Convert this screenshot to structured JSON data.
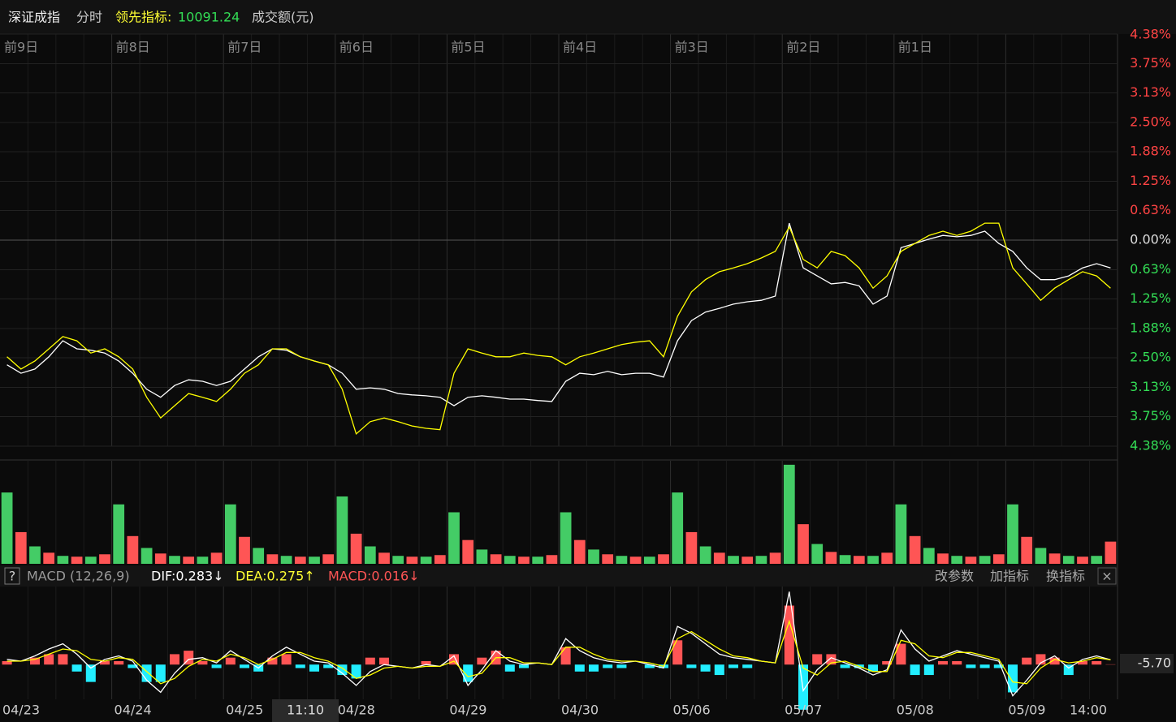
{
  "header": {
    "title": "深证成指",
    "mode": "分时",
    "lead_label": "领先指标:",
    "lead_value": 10091.24,
    "amount_label": "成交额(元)"
  },
  "price": {
    "ylim": [
      -4.38,
      4.38
    ],
    "yticks": [
      {
        "value": 4.38,
        "label": "4.38%"
      },
      {
        "value": 3.75,
        "label": "3.75%"
      },
      {
        "value": 3.13,
        "label": "3.13%"
      },
      {
        "value": 2.5,
        "label": "2.50%"
      },
      {
        "value": 1.88,
        "label": "1.88%"
      },
      {
        "value": 1.25,
        "label": "1.25%"
      },
      {
        "value": 0.63,
        "label": "0.63%"
      },
      {
        "value": 0,
        "label": "0.00%"
      },
      {
        "value": -0.63,
        "label": "0.63%"
      },
      {
        "value": -1.25,
        "label": "1.25%"
      },
      {
        "value": -1.88,
        "label": "1.88%"
      },
      {
        "value": -2.5,
        "label": "2.50%"
      },
      {
        "value": -3.13,
        "label": "3.13%"
      },
      {
        "value": -3.75,
        "label": "3.75%"
      },
      {
        "value": -4.38,
        "label": "4.38%"
      }
    ],
    "day_labels": [
      "前9日",
      "前8日",
      "前7日",
      "前6日",
      "前5日",
      "前4日",
      "前3日",
      "前2日",
      "前1日"
    ],
    "lines": [
      {
        "color": "#ffffff",
        "values": [
          -2.65,
          -2.83,
          -2.74,
          -2.48,
          -2.14,
          -2.31,
          -2.34,
          -2.4,
          -2.57,
          -2.83,
          -3.17,
          -3.34,
          -3.09,
          -2.97,
          -3.0,
          -3.09,
          -3.0,
          -2.74,
          -2.48,
          -2.31,
          -2.34,
          -2.48,
          -2.57,
          -2.65,
          -2.83,
          -3.17,
          -3.14,
          -3.17,
          -3.26,
          -3.29,
          -3.31,
          -3.34,
          -3.52,
          -3.34,
          -3.31,
          -3.34,
          -3.38,
          -3.38,
          -3.41,
          -3.43,
          -3.0,
          -2.83,
          -2.86,
          -2.79,
          -2.86,
          -2.83,
          -2.83,
          -2.91,
          -2.14,
          -1.71,
          -1.53,
          -1.45,
          -1.36,
          -1.31,
          -1.28,
          -1.19,
          0.36,
          -0.59,
          -0.76,
          -0.93,
          -0.9,
          -0.97,
          -1.36,
          -1.19,
          -0.16,
          -0.07,
          0.02,
          0.1,
          0.07,
          0.1,
          0.19,
          -0.07,
          -0.24,
          -0.59,
          -0.84,
          -0.84,
          -0.76,
          -0.59,
          -0.5,
          -0.59
        ]
      },
      {
        "color": "#ffff00",
        "values": [
          -2.48,
          -2.74,
          -2.57,
          -2.31,
          -2.05,
          -2.14,
          -2.4,
          -2.31,
          -2.48,
          -2.74,
          -3.34,
          -3.78,
          -3.52,
          -3.26,
          -3.34,
          -3.43,
          -3.17,
          -2.83,
          -2.65,
          -2.31,
          -2.31,
          -2.48,
          -2.57,
          -2.65,
          -3.17,
          -4.12,
          -3.86,
          -3.78,
          -3.86,
          -3.95,
          -4.0,
          -4.03,
          -2.83,
          -2.31,
          -2.4,
          -2.48,
          -2.48,
          -2.4,
          -2.45,
          -2.48,
          -2.65,
          -2.48,
          -2.4,
          -2.31,
          -2.22,
          -2.17,
          -2.14,
          -2.48,
          -1.62,
          -1.1,
          -0.84,
          -0.67,
          -0.59,
          -0.5,
          -0.38,
          -0.24,
          0.28,
          -0.41,
          -0.59,
          -0.24,
          -0.33,
          -0.59,
          -1.02,
          -0.76,
          -0.24,
          -0.07,
          0.1,
          0.19,
          0.1,
          0.19,
          0.36,
          0.36,
          -0.59,
          -0.93,
          -1.28,
          -1.02,
          -0.84,
          -0.67,
          -0.76,
          -1.02
        ]
      }
    ]
  },
  "volume": {
    "ylim": [
      0,
      130
    ],
    "values": [
      90,
      40,
      22,
      14,
      10,
      9,
      9,
      12,
      75,
      35,
      20,
      13,
      10,
      9,
      9,
      14,
      75,
      34,
      20,
      12,
      10,
      9,
      9,
      12,
      85,
      38,
      22,
      14,
      10,
      9,
      9,
      11,
      65,
      30,
      18,
      12,
      10,
      9,
      9,
      11,
      65,
      30,
      18,
      12,
      10,
      9,
      9,
      12,
      90,
      40,
      22,
      14,
      10,
      9,
      10,
      14,
      125,
      50,
      25,
      15,
      11,
      10,
      10,
      14,
      75,
      35,
      20,
      13,
      10,
      9,
      10,
      12,
      75,
      34,
      20,
      13,
      10,
      9,
      10,
      28
    ]
  },
  "macd": {
    "legend": {
      "help": "?",
      "name": "MACD (12,26,9)",
      "dif": "DIF:0.283↓",
      "dea": "DEA:0.275↑",
      "macd": "MACD:0.016↓"
    },
    "buttons": [
      "改参数",
      "加指标",
      "换指标"
    ],
    "close": "×",
    "readout": "-5.70",
    "ylim": [
      -2.0,
      4.5
    ],
    "dif": [
      0.3,
      0.2,
      0.5,
      0.9,
      1.2,
      0.6,
      -0.2,
      0.3,
      0.5,
      0.2,
      -0.9,
      -1.6,
      -0.5,
      0.3,
      0.4,
      0.1,
      0.8,
      0.3,
      -0.2,
      0.5,
      1.0,
      0.6,
      0.2,
      0.1,
      -0.5,
      -1.2,
      -0.4,
      0.0,
      -0.1,
      -0.2,
      0.0,
      -0.1,
      0.5,
      -1.2,
      -0.3,
      0.8,
      0.2,
      0.0,
      0.1,
      0.0,
      1.5,
      0.8,
      0.4,
      0.2,
      0.1,
      0.2,
      0.0,
      -0.2,
      2.2,
      1.8,
      1.2,
      0.6,
      0.4,
      0.3,
      0.2,
      0.1,
      4.2,
      -1.5,
      -0.3,
      0.4,
      0.1,
      -0.2,
      -0.6,
      -0.3,
      2.0,
      0.9,
      0.2,
      0.5,
      0.8,
      0.6,
      0.4,
      0.2,
      -1.8,
      -0.9,
      0.1,
      0.5,
      -0.2,
      0.3,
      0.5,
      0.283
    ],
    "dea": [
      0.2,
      0.2,
      0.3,
      0.6,
      0.9,
      0.8,
      0.3,
      0.2,
      0.4,
      0.3,
      -0.4,
      -1.1,
      -0.8,
      -0.1,
      0.3,
      0.2,
      0.6,
      0.4,
      0.0,
      0.3,
      0.7,
      0.7,
      0.4,
      0.2,
      -0.2,
      -0.8,
      -0.6,
      -0.2,
      -0.1,
      -0.2,
      -0.1,
      -0.1,
      0.2,
      -0.7,
      -0.5,
      0.4,
      0.4,
      0.1,
      0.1,
      0.0,
      1.0,
      1.0,
      0.6,
      0.3,
      0.2,
      0.2,
      0.1,
      -0.1,
      1.5,
      1.9,
      1.4,
      0.9,
      0.5,
      0.4,
      0.2,
      0.1,
      2.5,
      -0.2,
      -0.6,
      0.1,
      0.2,
      -0.1,
      -0.4,
      -0.4,
      1.4,
      1.2,
      0.5,
      0.4,
      0.7,
      0.7,
      0.5,
      0.3,
      -1.0,
      -1.1,
      -0.2,
      0.3,
      0.1,
      0.2,
      0.4,
      0.275
    ],
    "hist": [
      0.2,
      0,
      0.4,
      0.6,
      0.6,
      -0.4,
      -1.0,
      0.2,
      0.2,
      -0.2,
      -1.0,
      -1.0,
      0.6,
      0.8,
      0.2,
      -0.2,
      0.4,
      -0.2,
      -0.4,
      0.4,
      0.6,
      -0.2,
      -0.4,
      -0.2,
      -0.6,
      -0.8,
      0.4,
      0.4,
      0,
      0,
      0.2,
      0,
      0.6,
      -1.0,
      0.4,
      0.8,
      -0.4,
      -0.2,
      0,
      0,
      1.0,
      -0.4,
      -0.4,
      -0.2,
      -0.2,
      0,
      -0.2,
      -0.2,
      1.4,
      -0.2,
      -0.4,
      -0.6,
      -0.2,
      -0.2,
      0,
      0,
      3.4,
      -2.6,
      0.6,
      0.6,
      -0.2,
      -0.2,
      -0.4,
      0.2,
      1.2,
      -0.6,
      -0.6,
      0.2,
      0.2,
      -0.2,
      -0.2,
      -0.2,
      -1.6,
      0.4,
      0.6,
      0.4,
      -0.6,
      0.2,
      0.2,
      0.016
    ]
  },
  "x_labels": [
    "04/23",
    "04/24",
    "04/25",
    "04/28",
    "04/29",
    "04/30",
    "05/06",
    "05/07",
    "05/08",
    "05/09",
    "14:00"
  ],
  "cursor_time": "11:10"
}
